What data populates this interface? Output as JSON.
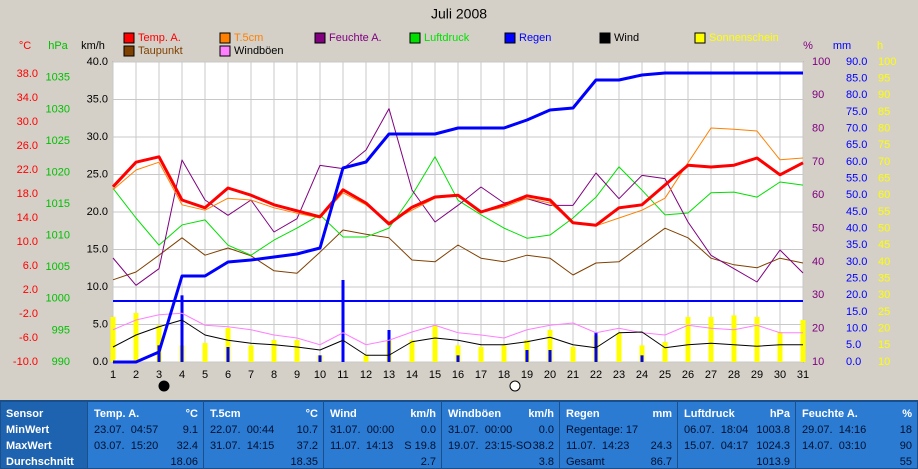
{
  "chart_data": {
    "type": "line",
    "title": "Juli 2008",
    "x": [
      1,
      2,
      3,
      4,
      5,
      6,
      7,
      8,
      9,
      10,
      11,
      12,
      13,
      14,
      15,
      16,
      17,
      18,
      19,
      20,
      21,
      22,
      23,
      24,
      25,
      26,
      27,
      28,
      29,
      30,
      31
    ],
    "xlim": [
      1,
      31
    ],
    "xticks": [
      1,
      2,
      3,
      4,
      5,
      6,
      7,
      8,
      9,
      10,
      11,
      12,
      13,
      14,
      15,
      16,
      17,
      18,
      19,
      20,
      21,
      22,
      23,
      24,
      25,
      26,
      27,
      28,
      29,
      30,
      31
    ],
    "grid": true,
    "axes": [
      {
        "label": "°C",
        "color": "#ff0000",
        "lim": [
          -10,
          40
        ],
        "ticks": [
          {
            "value": 38,
            "label": "38.0"
          },
          {
            "value": 34,
            "label": "34.0"
          },
          {
            "value": 30,
            "label": "30.0"
          },
          {
            "value": 26,
            "label": "26.0"
          },
          {
            "value": 22,
            "label": "22.0"
          },
          {
            "value": 18,
            "label": "18.0"
          },
          {
            "value": 14,
            "label": "14.0"
          },
          {
            "value": 10,
            "label": "10.0"
          },
          {
            "value": 6,
            "label": "6.0"
          },
          {
            "value": 2,
            "label": "2.0"
          },
          {
            "value": -2,
            "label": "-2.0"
          },
          {
            "value": -6,
            "label": "-6.0"
          },
          {
            "value": -10,
            "label": "-10.0"
          }
        ]
      },
      {
        "label": "hPa",
        "color": "#00c000",
        "lim": [
          990,
          1037.5
        ],
        "ticks": [
          1035,
          1030,
          1025,
          1020,
          1015,
          1010,
          1005,
          1000,
          995,
          990
        ]
      },
      {
        "label": "km/h",
        "color": "#000000",
        "lim": [
          0,
          40
        ],
        "ticks": [
          {
            "value": 40,
            "label": "40.0"
          },
          {
            "value": 35,
            "label": "35.0"
          },
          {
            "value": 30,
            "label": "30.0"
          },
          {
            "value": 25,
            "label": "25.0"
          },
          {
            "value": 20,
            "label": "20.0"
          },
          {
            "value": 15,
            "label": "15.0"
          },
          {
            "value": 10,
            "label": "10.0"
          },
          {
            "value": 5,
            "label": "5.0"
          },
          {
            "value": 0,
            "label": "0.0"
          }
        ]
      },
      {
        "label": "%",
        "color": "#800080",
        "lim": [
          10,
          100
        ],
        "ticks": [
          100,
          90,
          80,
          70,
          60,
          50,
          40,
          30,
          20,
          10
        ]
      },
      {
        "label": "mm",
        "color": "#0000ff",
        "lim": [
          0,
          90
        ],
        "ticks": [
          {
            "value": 90,
            "label": "90.0"
          },
          {
            "value": 85,
            "label": "85.0"
          },
          {
            "value": 80,
            "label": "80.0"
          },
          {
            "value": 75,
            "label": "75.0"
          },
          {
            "value": 70,
            "label": "70.0"
          },
          {
            "value": 65,
            "label": "65.0"
          },
          {
            "value": 60,
            "label": "60.0"
          },
          {
            "value": 55,
            "label": "55.0"
          },
          {
            "value": 50,
            "label": "50.0"
          },
          {
            "value": 45,
            "label": "45.0"
          },
          {
            "value": 40,
            "label": "40.0"
          },
          {
            "value": 35,
            "label": "35.0"
          },
          {
            "value": 30,
            "label": "30.0"
          },
          {
            "value": 25,
            "label": "25.0"
          },
          {
            "value": 20,
            "label": "20.0"
          },
          {
            "value": 15,
            "label": "15.0"
          },
          {
            "value": 10,
            "label": "10.0"
          },
          {
            "value": 5,
            "label": "5.0"
          },
          {
            "value": 0,
            "label": "0.0"
          }
        ]
      },
      {
        "label": "h",
        "color": "#ffff00",
        "lim": [
          10,
          100
        ],
        "ticks": [
          100,
          95,
          90,
          85,
          80,
          75,
          70,
          65,
          60,
          55,
          50,
          45,
          40,
          35,
          30,
          25,
          20,
          15,
          10
        ]
      }
    ],
    "reference_line": {
      "axis": 4,
      "value": 18.3,
      "color": "#0000ff"
    },
    "series": [
      {
        "name": "Sonnenschein",
        "color": "#ffff00",
        "axis": 5,
        "style": "bar",
        "values": [
          23.5,
          24.7,
          21,
          15,
          15.7,
          20.2,
          15,
          16.6,
          16.6,
          12,
          10,
          12,
          16.6,
          16.6,
          21,
          15,
          14.5,
          15,
          16.6,
          19.6,
          14.5,
          18,
          18.7,
          15,
          16,
          23.5,
          23.5,
          24,
          23.5,
          19,
          22.6
        ]
      },
      {
        "color": "#0000ff",
        "axis": 4,
        "style": "bar",
        "values": [
          0,
          0,
          5,
          20,
          0,
          4.5,
          0,
          0,
          0,
          2,
          24.6,
          0,
          9.6,
          0,
          0,
          2,
          0,
          0,
          3.6,
          3.6,
          0,
          9,
          0,
          2,
          0,
          0,
          0,
          0,
          0,
          0,
          0
        ]
      },
      {
        "name": "Taupunkt",
        "color": "#804000",
        "axis": 0,
        "style": "line",
        "values": [
          3.7,
          5,
          7.8,
          10.7,
          7.8,
          9,
          7.7,
          5.2,
          4.8,
          8.3,
          12,
          11.3,
          10.7,
          7,
          6.7,
          9.5,
          7.3,
          6.7,
          7.8,
          7.3,
          4.5,
          6.5,
          6.7,
          9.5,
          12.3,
          10.7,
          7.3,
          6.2,
          5.7,
          7.3,
          6.5
        ]
      },
      {
        "name": "Luftdruck",
        "color": "#00e000",
        "axis": 1,
        "style": "line",
        "values": [
          1017.5,
          1012.8,
          1008.5,
          1011.7,
          1012.5,
          1008.5,
          1006.9,
          1009.3,
          1011.2,
          1013.3,
          1009.8,
          1009.8,
          1011.2,
          1016.4,
          1022.5,
          1015.6,
          1013.3,
          1011.2,
          1009.6,
          1010.1,
          1012.8,
          1016.1,
          1020.9,
          1017.2,
          1013.3,
          1013.6,
          1016.8,
          1016.9,
          1016.1,
          1018.5,
          1018
        ]
      },
      {
        "name": "Feuchte A.",
        "color": "#800080",
        "axis": 3,
        "style": "line",
        "values": [
          41.2,
          33,
          38,
          70.6,
          58.6,
          54,
          58.6,
          49,
          53,
          69,
          68,
          73.6,
          86,
          61.6,
          52,
          57,
          62.5,
          57.7,
          59,
          57,
          57,
          66.7,
          59,
          66,
          65,
          52,
          42,
          38,
          34,
          43.6,
          36.7
        ]
      },
      {
        "name": "Windböen",
        "color": "#ff80ff",
        "axis": 2,
        "style": "line",
        "values": [
          4.3,
          5.6,
          6.3,
          6.5,
          4.9,
          4.7,
          4.3,
          3.6,
          3.2,
          2.3,
          3.9,
          2.3,
          2.9,
          4,
          4.9,
          3.9,
          3.6,
          3.2,
          4.3,
          4.9,
          5.2,
          3.9,
          4.5,
          3.9,
          3.6,
          4.9,
          4.5,
          4.3,
          4.9,
          3.9,
          3.9
        ]
      },
      {
        "name": "Wind",
        "color": "#000000",
        "axis": 2,
        "style": "line",
        "values": [
          2,
          3.6,
          4.7,
          5.6,
          3.6,
          2.9,
          2.5,
          2.3,
          2,
          1.6,
          2.9,
          0.9,
          0.9,
          2.7,
          3.2,
          2.9,
          2.3,
          2.3,
          2.7,
          3.3,
          2.3,
          1.9,
          3.9,
          4,
          1.9,
          2.3,
          2.5,
          2.3,
          2.1,
          2.3,
          2.3
        ]
      },
      {
        "name": "T.5cm",
        "color": "#ff8000",
        "axis": 0,
        "style": "line",
        "values": [
          18.7,
          22,
          23.3,
          16.2,
          15.3,
          17.3,
          17,
          15.7,
          14.8,
          14,
          18.2,
          16.2,
          13.3,
          15.3,
          17.3,
          17.7,
          15,
          15.8,
          17.3,
          16.5,
          13.3,
          12.7,
          14,
          15.3,
          17.3,
          23.2,
          29,
          28.8,
          28.5,
          23.7,
          24
        ]
      },
      {
        "name": "Temp. A.",
        "color": "#ff0000",
        "axis": 0,
        "style": "line",
        "width": 3,
        "values": [
          19.2,
          23.3,
          24.2,
          17,
          15.7,
          19,
          17.8,
          16.2,
          15.2,
          14.2,
          18.7,
          16.5,
          13,
          15.8,
          17.5,
          17.8,
          15,
          16.2,
          17.7,
          17,
          13.2,
          12.8,
          15.7,
          16.2,
          19.5,
          22.8,
          22.5,
          22.8,
          24,
          21.2,
          23.2
        ]
      },
      {
        "name": "Regen",
        "color": "#0000ff",
        "axis": 4,
        "style": "line",
        "width": 3,
        "values": [
          0,
          0,
          3,
          25.8,
          25.8,
          30,
          30.6,
          31.5,
          32.4,
          34.2,
          58.2,
          60,
          68.4,
          68.4,
          68.4,
          70.2,
          70.2,
          70.2,
          72.6,
          75.6,
          76.2,
          84.6,
          84.6,
          86.1,
          86.7,
          86.7,
          86.7,
          86.7,
          86.7,
          86.7,
          86.7
        ]
      }
    ]
  },
  "table": {
    "sensor_col": [
      "Sensor",
      "MinWert",
      "MaxWert",
      "Durchschnitt"
    ],
    "blocks": [
      {
        "title": "Temp. A.",
        "unit": "°C",
        "rows": [
          {
            "left": "23.07.  04:57",
            "right": "9.1"
          },
          {
            "left": "03.07.  15:20",
            "right": "32.4"
          },
          {
            "right": "18.06"
          }
        ]
      },
      {
        "title": "T.5cm",
        "unit": "°C",
        "rows": [
          {
            "left": "22.07.  00:44",
            "right": "10.7"
          },
          {
            "left": "31.07.  14:15",
            "right": "37.2"
          },
          {
            "right": "18.35"
          }
        ]
      },
      {
        "title": "Wind",
        "unit": "km/h",
        "rows": [
          {
            "left": "31.07.  00:00",
            "right": "0.0"
          },
          {
            "left": "11.07.  14:13",
            "right": "S 19.8"
          },
          {
            "right": "2.7"
          }
        ]
      },
      {
        "title": "Windböen",
        "unit": "km/h",
        "rows": [
          {
            "left": "31.07.  00:00",
            "right": "0.0"
          },
          {
            "left": "19.07.  23:15-SO",
            "right": "38.2"
          },
          {
            "right": "3.8"
          }
        ]
      },
      {
        "title": "Regen",
        "unit": "mm",
        "rows": [
          {
            "left": "Regentage: 17"
          },
          {
            "left": "11.07.  14:23",
            "right": "24.3"
          },
          {
            "left": "Gesamt",
            "right": "86.7"
          }
        ]
      },
      {
        "title": "Luftdruck",
        "unit": "hPa",
        "rows": [
          {
            "left": "06.07.  18:04",
            "right": "1003.8"
          },
          {
            "left": "15.07.  04:17",
            "right": "1024.3"
          },
          {
            "right": "1013.9"
          }
        ]
      },
      {
        "title": "Feuchte A.",
        "unit": "%",
        "rows": [
          {
            "left": "29.07.  14:16",
            "right": "18"
          },
          {
            "left": "14.07.  03:10",
            "right": "90"
          },
          {
            "right": "55"
          }
        ]
      }
    ]
  }
}
